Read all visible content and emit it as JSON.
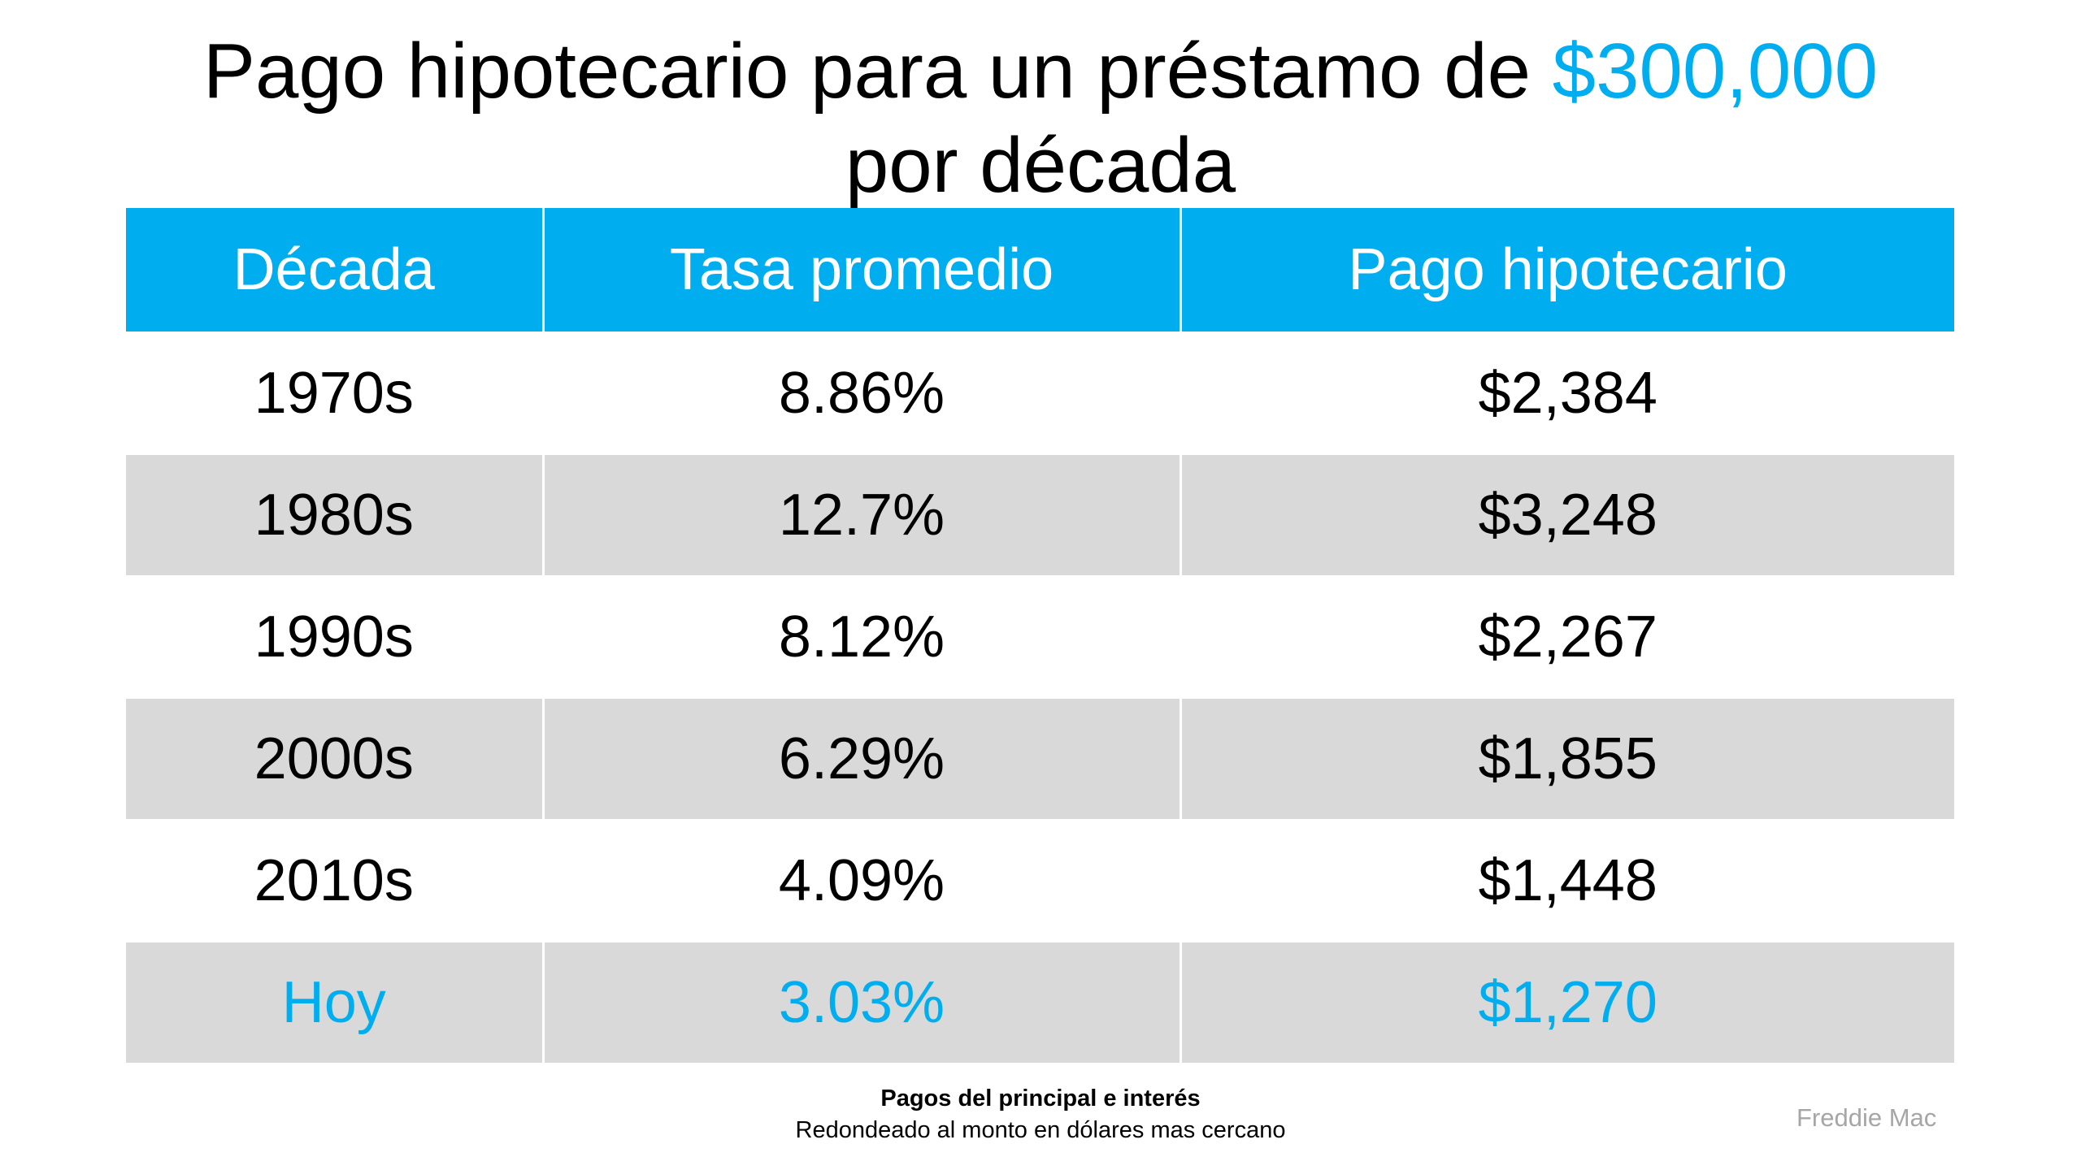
{
  "title": {
    "line1_prefix": "Pago hipotecario para un préstamo de ",
    "line1_accent": "$300,000",
    "line2": "por década"
  },
  "colors": {
    "accent": "#00aeef",
    "row_alt": "#d9d9d9"
  },
  "table": {
    "headers": [
      "Década",
      "Tasa promedio",
      "Pago hipotecario"
    ],
    "rows": [
      [
        "1970s",
        "8.86%",
        "$2,384"
      ],
      [
        "1980s",
        "12.7%",
        "$3,248"
      ],
      [
        "1990s",
        "8.12%",
        "$2,267"
      ],
      [
        "2000s",
        "6.29%",
        "$1,855"
      ],
      [
        "2010s",
        "4.09%",
        "$1,448"
      ],
      [
        "Hoy",
        "3.03%",
        "$1,270"
      ]
    ]
  },
  "footnote": {
    "line1": "Pagos del principal e interés",
    "line2": "Redondeado al monto en dólares mas cercano"
  },
  "source": "Freddie Mac"
}
